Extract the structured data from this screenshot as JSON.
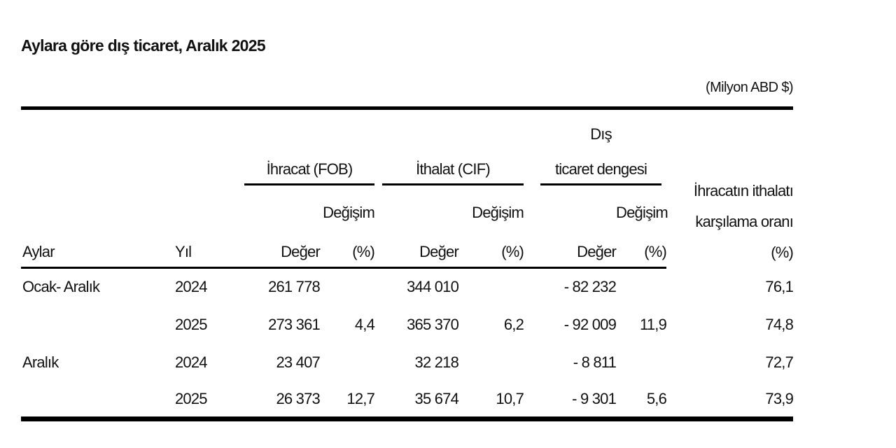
{
  "title": "Aylara göre dış ticaret, Aralık 2025",
  "unit_note": "(Milyon ABD $)",
  "table": {
    "labels": {
      "months": "Aylar",
      "year": "Yıl",
      "value": "Değer",
      "change": "Değişim",
      "pct": "(%)"
    },
    "groups": [
      {
        "label": "İhracat (FOB)"
      },
      {
        "label": "İthalat (CIF)"
      },
      {
        "line1": "Dış",
        "line2": "ticaret dengesi"
      }
    ],
    "coverage_header": {
      "line1": "İhracatın ithalatı",
      "line2": "karşılama oranı",
      "line3": "(%)"
    },
    "rows": [
      {
        "month": "Ocak- Aralık",
        "year": "2024",
        "export_value": "261 778",
        "export_change": "",
        "import_value": "344 010",
        "import_change": "",
        "balance_value": "- 82 232",
        "balance_change": "",
        "coverage_ratio": "76,1"
      },
      {
        "month": "",
        "year": "2025",
        "export_value": "273 361",
        "export_change": "4,4",
        "import_value": "365 370",
        "import_change": "6,2",
        "balance_value": "- 92 009",
        "balance_change": "11,9",
        "coverage_ratio": "74,8"
      },
      {
        "month": "Aralık",
        "year": "2024",
        "export_value": "23 407",
        "export_change": "",
        "import_value": "32 218",
        "import_change": "",
        "balance_value": "- 8 811",
        "balance_change": "",
        "coverage_ratio": "72,7"
      },
      {
        "month": "",
        "year": "2025",
        "export_value": "26 373",
        "export_change": "12,7",
        "import_value": "35 674",
        "import_change": "10,7",
        "balance_value": "- 9 301",
        "balance_change": "5,6",
        "coverage_ratio": "73,9"
      }
    ]
  },
  "colors": {
    "text": "#111111",
    "rule": "#000000",
    "background": "#ffffff"
  }
}
